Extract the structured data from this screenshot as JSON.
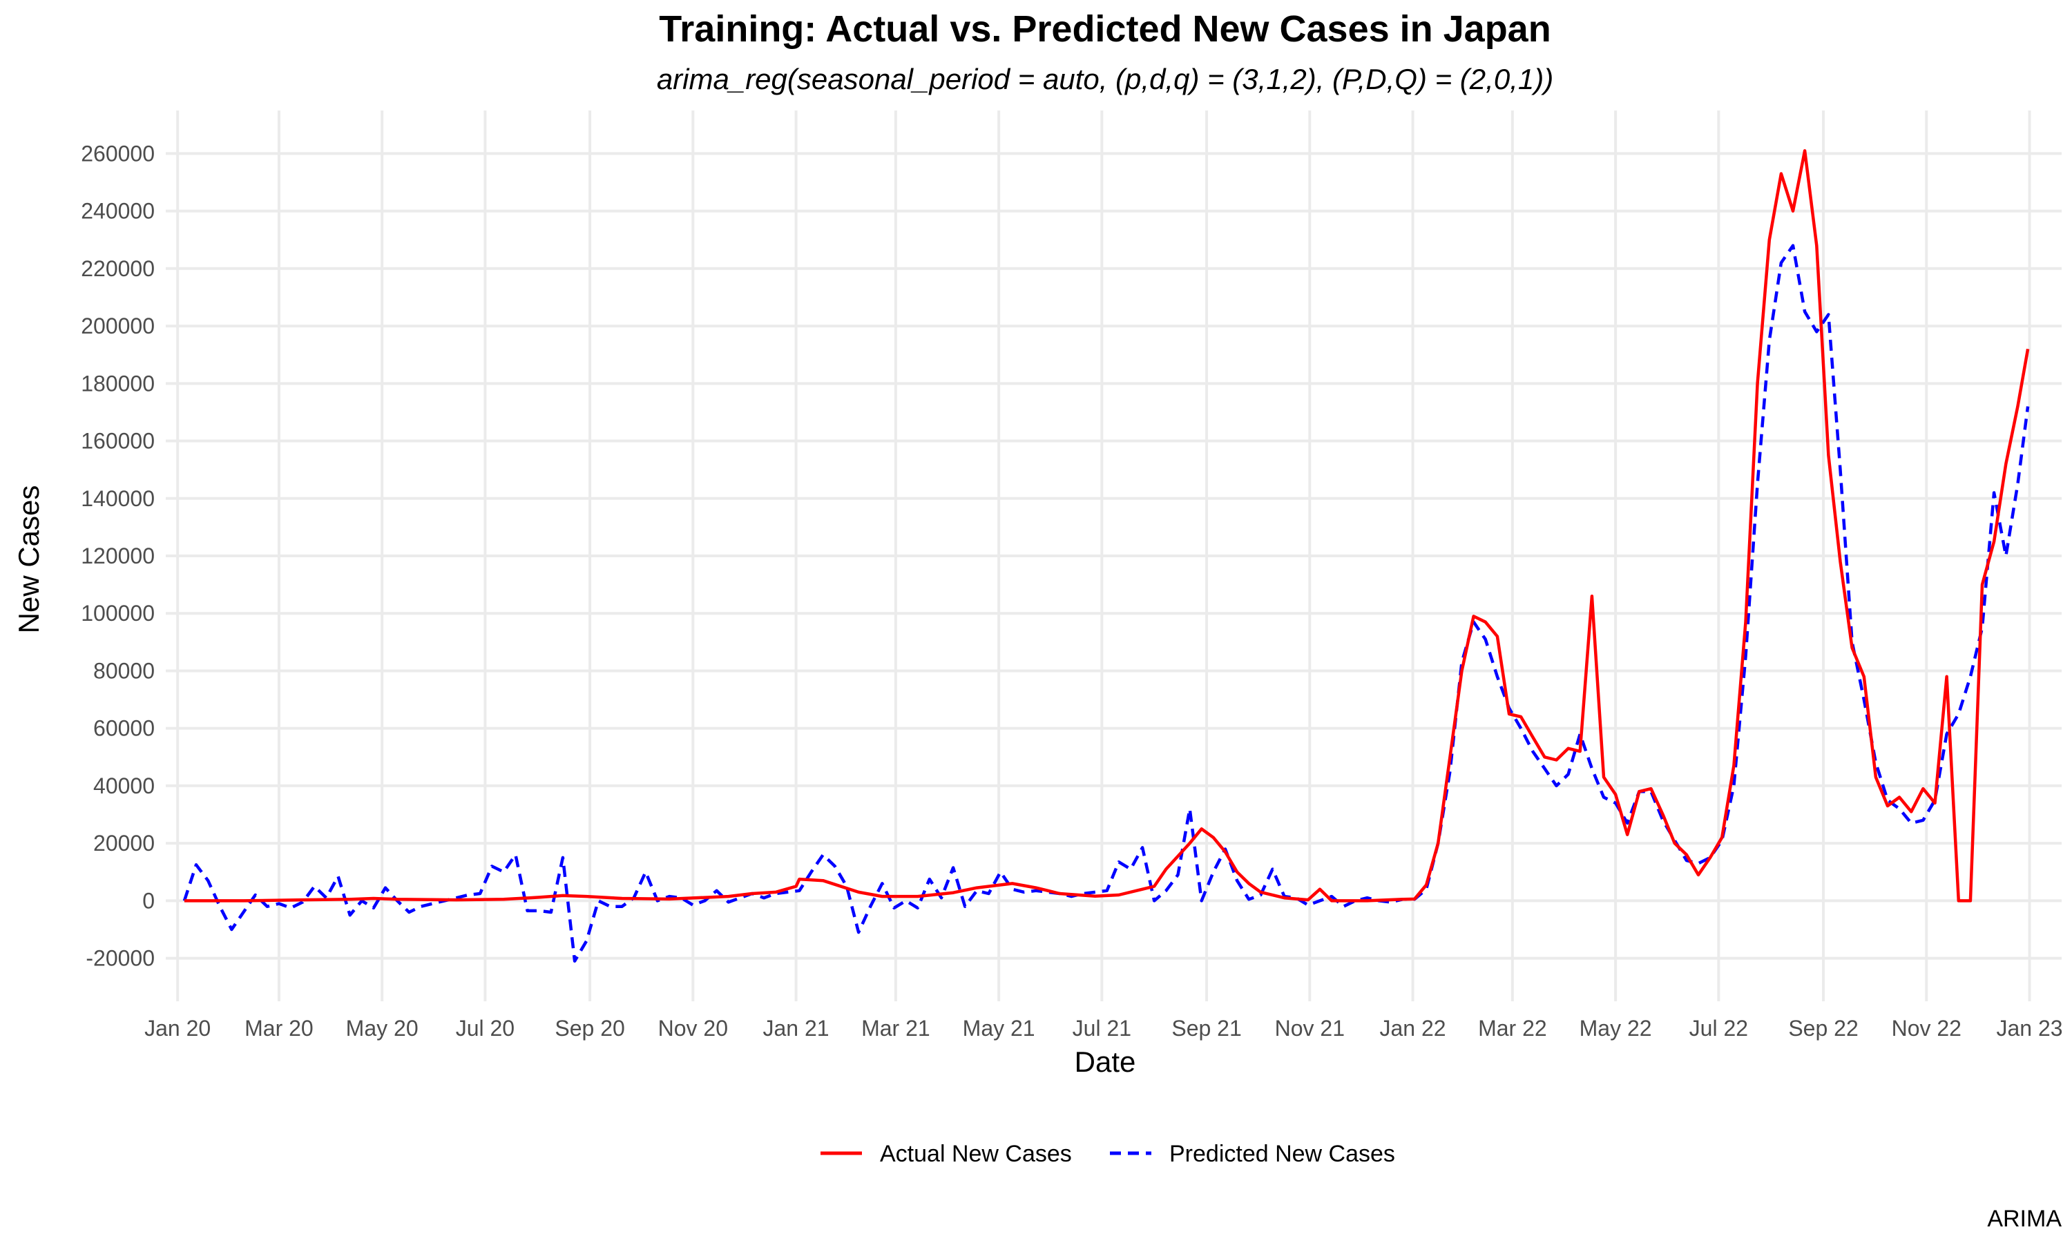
{
  "chart_data": {
    "type": "line",
    "title": "Training: Actual vs. Predicted New Cases in Japan",
    "subtitle": "arima_reg(seasonal_period = auto, (p,d,q) = (3,1,2), (P,D,Q) = (2,0,1))",
    "xlabel": "Date",
    "ylabel": "New Cases",
    "caption": "ARIMA",
    "x_range": [
      "2019-12-25",
      "2023-01-20"
    ],
    "ylim": [
      -35000,
      275000
    ],
    "x_ticks": [
      {
        "label": "Jan 20",
        "date": "2020-01-01"
      },
      {
        "label": "Mar 20",
        "date": "2020-03-01"
      },
      {
        "label": "May 20",
        "date": "2020-05-01"
      },
      {
        "label": "Jul 20",
        "date": "2020-07-01"
      },
      {
        "label": "Sep 20",
        "date": "2020-09-01"
      },
      {
        "label": "Nov 20",
        "date": "2020-11-01"
      },
      {
        "label": "Jan 21",
        "date": "2021-01-01"
      },
      {
        "label": "Mar 21",
        "date": "2021-03-01"
      },
      {
        "label": "May 21",
        "date": "2021-05-01"
      },
      {
        "label": "Jul 21",
        "date": "2021-07-01"
      },
      {
        "label": "Sep 21",
        "date": "2021-09-01"
      },
      {
        "label": "Nov 21",
        "date": "2021-11-01"
      },
      {
        "label": "Jan 22",
        "date": "2022-01-01"
      },
      {
        "label": "Mar 22",
        "date": "2022-03-01"
      },
      {
        "label": "May 22",
        "date": "2022-05-01"
      },
      {
        "label": "Jul 22",
        "date": "2022-07-01"
      },
      {
        "label": "Sep 22",
        "date": "2022-09-01"
      },
      {
        "label": "Nov 22",
        "date": "2022-11-01"
      },
      {
        "label": "Jan 23",
        "date": "2023-01-01"
      }
    ],
    "y_ticks": [
      -20000,
      0,
      20000,
      40000,
      60000,
      80000,
      100000,
      120000,
      140000,
      160000,
      180000,
      200000,
      220000,
      240000,
      260000
    ],
    "grid": true,
    "legend": {
      "position": "bottom"
    },
    "series": [
      {
        "name": "Actual New Cases",
        "color": "#ff0000",
        "dash": "solid",
        "points": [
          [
            "2020-01-05",
            0
          ],
          [
            "2020-01-19",
            0
          ],
          [
            "2020-02-09",
            0
          ],
          [
            "2020-03-15",
            300
          ],
          [
            "2020-04-12",
            500
          ],
          [
            "2020-04-26",
            800
          ],
          [
            "2020-05-10",
            500
          ],
          [
            "2020-06-14",
            300
          ],
          [
            "2020-07-12",
            500
          ],
          [
            "2020-08-02",
            1200
          ],
          [
            "2020-08-16",
            1800
          ],
          [
            "2020-08-30",
            1500
          ],
          [
            "2020-09-20",
            800
          ],
          [
            "2020-10-18",
            600
          ],
          [
            "2020-11-22",
            1500
          ],
          [
            "2020-12-06",
            2500
          ],
          [
            "2020-12-20",
            3000
          ],
          [
            "2021-01-01",
            5000
          ],
          [
            "2021-01-03",
            7500
          ],
          [
            "2021-01-17",
            7000
          ],
          [
            "2021-02-07",
            3000
          ],
          [
            "2021-02-21",
            1500
          ],
          [
            "2021-03-14",
            1500
          ],
          [
            "2021-04-04",
            2800
          ],
          [
            "2021-04-18",
            4500
          ],
          [
            "2021-05-09",
            6000
          ],
          [
            "2021-05-23",
            4500
          ],
          [
            "2021-06-06",
            2500
          ],
          [
            "2021-06-27",
            1600
          ],
          [
            "2021-07-11",
            2000
          ],
          [
            "2021-07-25",
            4000
          ],
          [
            "2021-08-01",
            5000
          ],
          [
            "2021-08-08",
            11000
          ],
          [
            "2021-08-22",
            20000
          ],
          [
            "2021-08-29",
            25000
          ],
          [
            "2021-09-05",
            22000
          ],
          [
            "2021-09-12",
            17000
          ],
          [
            "2021-09-19",
            10000
          ],
          [
            "2021-09-26",
            6000
          ],
          [
            "2021-10-03",
            3000
          ],
          [
            "2021-10-17",
            1000
          ],
          [
            "2021-10-31",
            300
          ],
          [
            "2021-11-07",
            4000
          ],
          [
            "2021-11-14",
            0
          ],
          [
            "2021-12-05",
            0
          ],
          [
            "2021-12-26",
            500
          ],
          [
            "2022-01-02",
            600
          ],
          [
            "2022-01-09",
            5500
          ],
          [
            "2022-01-16",
            20000
          ],
          [
            "2022-01-23",
            50000
          ],
          [
            "2022-01-30",
            80000
          ],
          [
            "2022-02-06",
            99000
          ],
          [
            "2022-02-13",
            97000
          ],
          [
            "2022-02-20",
            92000
          ],
          [
            "2022-02-27",
            65000
          ],
          [
            "2022-03-06",
            64000
          ],
          [
            "2022-03-13",
            57000
          ],
          [
            "2022-03-20",
            50000
          ],
          [
            "2022-03-27",
            49000
          ],
          [
            "2022-04-03",
            53000
          ],
          [
            "2022-04-10",
            52000
          ],
          [
            "2022-04-17",
            106000
          ],
          [
            "2022-04-24",
            43000
          ],
          [
            "2022-05-01",
            37000
          ],
          [
            "2022-05-08",
            23000
          ],
          [
            "2022-05-15",
            38000
          ],
          [
            "2022-05-22",
            39000
          ],
          [
            "2022-05-29",
            30000
          ],
          [
            "2022-06-05",
            20000
          ],
          [
            "2022-06-12",
            16000
          ],
          [
            "2022-06-19",
            9000
          ],
          [
            "2022-06-26",
            15000
          ],
          [
            "2022-07-03",
            22000
          ],
          [
            "2022-07-10",
            47000
          ],
          [
            "2022-07-17",
            97000
          ],
          [
            "2022-07-24",
            180000
          ],
          [
            "2022-07-31",
            230000
          ],
          [
            "2022-08-07",
            253000
          ],
          [
            "2022-08-14",
            240000
          ],
          [
            "2022-08-21",
            261000
          ],
          [
            "2022-08-28",
            228000
          ],
          [
            "2022-09-04",
            155000
          ],
          [
            "2022-09-11",
            118000
          ],
          [
            "2022-09-18",
            88000
          ],
          [
            "2022-09-25",
            78000
          ],
          [
            "2022-10-02",
            43000
          ],
          [
            "2022-10-09",
            33000
          ],
          [
            "2022-10-16",
            36000
          ],
          [
            "2022-10-23",
            31000
          ],
          [
            "2022-10-30",
            39000
          ],
          [
            "2022-11-06",
            34000
          ],
          [
            "2022-11-13",
            78000
          ],
          [
            "2022-11-20",
            0
          ],
          [
            "2022-11-27",
            0
          ],
          [
            "2022-12-04",
            110000
          ],
          [
            "2022-12-11",
            125000
          ],
          [
            "2022-12-18",
            152000
          ],
          [
            "2022-12-25",
            172000
          ],
          [
            "2022-12-31",
            192000
          ]
        ]
      },
      {
        "name": "Predicted New Cases",
        "color": "#0000ff",
        "dash": "dashed",
        "points": [
          [
            "2020-01-05",
            0
          ],
          [
            "2020-01-12",
            12500
          ],
          [
            "2020-01-19",
            7000
          ],
          [
            "2020-01-26",
            -2000
          ],
          [
            "2020-02-02",
            -10000
          ],
          [
            "2020-02-09",
            -4000
          ],
          [
            "2020-02-16",
            2000
          ],
          [
            "2020-02-23",
            -2000
          ],
          [
            "2020-03-01",
            -1000
          ],
          [
            "2020-03-08",
            -2500
          ],
          [
            "2020-03-15",
            -500
          ],
          [
            "2020-03-22",
            5000
          ],
          [
            "2020-03-29",
            1000
          ],
          [
            "2020-04-05",
            8500
          ],
          [
            "2020-04-12",
            -5000
          ],
          [
            "2020-04-19",
            0
          ],
          [
            "2020-04-26",
            -2500
          ],
          [
            "2020-05-03",
            4500
          ],
          [
            "2020-05-10",
            0
          ],
          [
            "2020-05-17",
            -4000
          ],
          [
            "2020-05-24",
            -2000
          ],
          [
            "2020-05-31",
            -1000
          ],
          [
            "2020-06-07",
            0
          ],
          [
            "2020-06-14",
            1000
          ],
          [
            "2020-06-21",
            2000
          ],
          [
            "2020-06-28",
            2500
          ],
          [
            "2020-07-05",
            12000
          ],
          [
            "2020-07-12",
            10000
          ],
          [
            "2020-07-19",
            16000
          ],
          [
            "2020-07-26",
            -3500
          ],
          [
            "2020-08-02",
            -3500
          ],
          [
            "2020-08-09",
            -4000
          ],
          [
            "2020-08-16",
            15000
          ],
          [
            "2020-08-23",
            -21000
          ],
          [
            "2020-08-30",
            -14000
          ],
          [
            "2020-09-06",
            0
          ],
          [
            "2020-09-13",
            -2000
          ],
          [
            "2020-09-20",
            -2000
          ],
          [
            "2020-09-27",
            1000
          ],
          [
            "2020-10-04",
            10000
          ],
          [
            "2020-10-11",
            0
          ],
          [
            "2020-10-18",
            1500
          ],
          [
            "2020-10-25",
            1000
          ],
          [
            "2020-11-01",
            -1500
          ],
          [
            "2020-11-08",
            0
          ],
          [
            "2020-11-15",
            3500
          ],
          [
            "2020-11-22",
            -500
          ],
          [
            "2020-11-29",
            1000
          ],
          [
            "2020-12-06",
            2500
          ],
          [
            "2020-12-13",
            1000
          ],
          [
            "2020-12-20",
            2500
          ],
          [
            "2020-12-27",
            3000
          ],
          [
            "2021-01-03",
            3500
          ],
          [
            "2021-01-10",
            10000
          ],
          [
            "2021-01-17",
            16000
          ],
          [
            "2021-01-24",
            12000
          ],
          [
            "2021-01-31",
            5000
          ],
          [
            "2021-02-07",
            -11000
          ],
          [
            "2021-02-14",
            -2000
          ],
          [
            "2021-02-21",
            6000
          ],
          [
            "2021-02-28",
            -2500
          ],
          [
            "2021-03-07",
            0
          ],
          [
            "2021-03-14",
            -2500
          ],
          [
            "2021-03-21",
            7500
          ],
          [
            "2021-03-28",
            1000
          ],
          [
            "2021-04-04",
            11500
          ],
          [
            "2021-04-11",
            -2000
          ],
          [
            "2021-04-18",
            3500
          ],
          [
            "2021-04-25",
            2500
          ],
          [
            "2021-05-02",
            10000
          ],
          [
            "2021-05-09",
            4000
          ],
          [
            "2021-05-16",
            3000
          ],
          [
            "2021-05-23",
            3500
          ],
          [
            "2021-05-30",
            3000
          ],
          [
            "2021-06-06",
            2500
          ],
          [
            "2021-06-13",
            1500
          ],
          [
            "2021-06-20",
            2500
          ],
          [
            "2021-06-27",
            3000
          ],
          [
            "2021-07-04",
            3500
          ],
          [
            "2021-07-11",
            13500
          ],
          [
            "2021-07-18",
            11000
          ],
          [
            "2021-07-25",
            18500
          ],
          [
            "2021-08-01",
            0
          ],
          [
            "2021-08-08",
            3500
          ],
          [
            "2021-08-15",
            9000
          ],
          [
            "2021-08-22",
            32000
          ],
          [
            "2021-08-29",
            0
          ],
          [
            "2021-09-05",
            10000
          ],
          [
            "2021-09-12",
            18000
          ],
          [
            "2021-09-19",
            7000
          ],
          [
            "2021-09-26",
            500
          ],
          [
            "2021-10-03",
            2000
          ],
          [
            "2021-10-10",
            11000
          ],
          [
            "2021-10-17",
            1500
          ],
          [
            "2021-10-24",
            1000
          ],
          [
            "2021-10-31",
            -1500
          ],
          [
            "2021-11-07",
            0
          ],
          [
            "2021-11-14",
            1500
          ],
          [
            "2021-11-21",
            -2000
          ],
          [
            "2021-11-28",
            0
          ],
          [
            "2021-12-05",
            1000
          ],
          [
            "2021-12-12",
            0
          ],
          [
            "2021-12-19",
            -500
          ],
          [
            "2021-12-26",
            500
          ],
          [
            "2022-01-02",
            500
          ],
          [
            "2022-01-09",
            4000
          ],
          [
            "2022-01-16",
            20000
          ],
          [
            "2022-01-23",
            45000
          ],
          [
            "2022-01-30",
            83000
          ],
          [
            "2022-02-06",
            97000
          ],
          [
            "2022-02-13",
            91000
          ],
          [
            "2022-02-20",
            78000
          ],
          [
            "2022-02-27",
            67000
          ],
          [
            "2022-03-06",
            60000
          ],
          [
            "2022-03-13",
            52000
          ],
          [
            "2022-03-20",
            46000
          ],
          [
            "2022-03-27",
            40000
          ],
          [
            "2022-04-03",
            44000
          ],
          [
            "2022-04-10",
            58000
          ],
          [
            "2022-04-17",
            46000
          ],
          [
            "2022-04-24",
            36000
          ],
          [
            "2022-05-01",
            34000
          ],
          [
            "2022-05-08",
            27000
          ],
          [
            "2022-05-15",
            38000
          ],
          [
            "2022-05-22",
            38000
          ],
          [
            "2022-05-29",
            28000
          ],
          [
            "2022-06-05",
            21000
          ],
          [
            "2022-06-12",
            14000
          ],
          [
            "2022-06-19",
            13000
          ],
          [
            "2022-06-26",
            15000
          ],
          [
            "2022-07-03",
            21000
          ],
          [
            "2022-07-10",
            40000
          ],
          [
            "2022-07-17",
            85000
          ],
          [
            "2022-07-24",
            145000
          ],
          [
            "2022-07-31",
            195000
          ],
          [
            "2022-08-07",
            222000
          ],
          [
            "2022-08-14",
            228000
          ],
          [
            "2022-08-21",
            205000
          ],
          [
            "2022-08-28",
            198000
          ],
          [
            "2022-09-04",
            204000
          ],
          [
            "2022-09-11",
            150000
          ],
          [
            "2022-09-18",
            90000
          ],
          [
            "2022-09-25",
            70000
          ],
          [
            "2022-10-02",
            48000
          ],
          [
            "2022-10-09",
            35000
          ],
          [
            "2022-10-16",
            32000
          ],
          [
            "2022-10-23",
            27000
          ],
          [
            "2022-10-30",
            28000
          ],
          [
            "2022-11-06",
            35000
          ],
          [
            "2022-11-13",
            58000
          ],
          [
            "2022-11-20",
            65000
          ],
          [
            "2022-11-27",
            78000
          ],
          [
            "2022-12-04",
            95000
          ],
          [
            "2022-12-11",
            142000
          ],
          [
            "2022-12-18",
            120000
          ],
          [
            "2022-12-25",
            145000
          ],
          [
            "2022-12-31",
            172000
          ]
        ]
      }
    ]
  }
}
